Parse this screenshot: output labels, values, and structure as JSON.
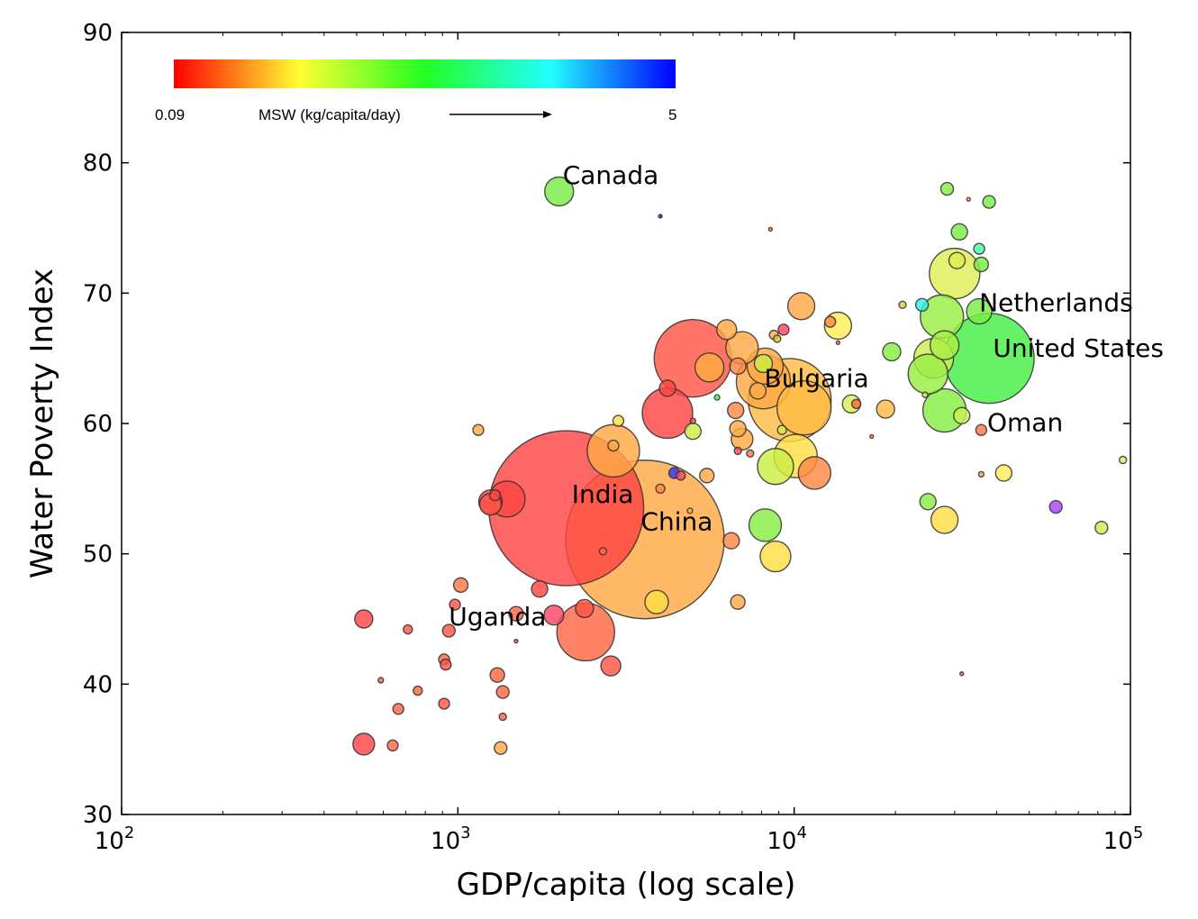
{
  "chart_data": {
    "type": "scatter",
    "subtype": "bubble",
    "xlabel": "GDP/capita (log scale)",
    "ylabel": "Water Poverty Index",
    "x_scale": "log",
    "xlim": [
      100,
      100000
    ],
    "ylim": [
      30,
      90
    ],
    "x_ticks": [
      {
        "value": 100,
        "base": "10",
        "exp": "2"
      },
      {
        "value": 1000,
        "base": "10",
        "exp": "3"
      },
      {
        "value": 10000,
        "base": "10",
        "exp": "4"
      },
      {
        "value": 100000,
        "base": "10",
        "exp": "5"
      }
    ],
    "y_ticks": [
      30,
      40,
      50,
      60,
      70,
      80,
      90
    ],
    "grid": false,
    "colorbar": {
      "label": "MSW (kg/capita/day)",
      "min_label": "0.09",
      "max_label": "5",
      "min": 0.09,
      "max": 5,
      "colors": [
        "#ff0000",
        "#ffff33",
        "#22ff22",
        "#22ffff",
        "#0000ff"
      ],
      "placement": "top-left"
    },
    "annotations": [
      {
        "text": "Canada",
        "x": 2050,
        "y": 78.4
      },
      {
        "text": "Netherlands",
        "x": 35500,
        "y": 68.6
      },
      {
        "text": "United States",
        "x": 39000,
        "y": 65.1
      },
      {
        "text": "Bulgaria",
        "x": 8150,
        "y": 62.8
      },
      {
        "text": "Oman",
        "x": 37500,
        "y": 59.4
      },
      {
        "text": "India",
        "x": 2180,
        "y": 53.9
      },
      {
        "text": "China",
        "x": 3500,
        "y": 51.8
      },
      {
        "text": "Uganda",
        "x": 940,
        "y": 44.5
      }
    ],
    "points": [
      {
        "x": 2000,
        "y": 77.8,
        "size": 16,
        "color": "#77ee44"
      },
      {
        "x": 4000,
        "y": 75.9,
        "size": 2,
        "color": "#2222cc"
      },
      {
        "x": 8500,
        "y": 74.9,
        "size": 2,
        "color": "#ff8844"
      },
      {
        "x": 28500,
        "y": 78.0,
        "size": 7,
        "color": "#88ee44"
      },
      {
        "x": 33000,
        "y": 77.2,
        "size": 2,
        "color": "#ffaa44"
      },
      {
        "x": 38000,
        "y": 77.0,
        "size": 7,
        "color": "#77ee44"
      },
      {
        "x": 31000,
        "y": 74.7,
        "size": 9,
        "color": "#77ee44"
      },
      {
        "x": 35500,
        "y": 73.4,
        "size": 6,
        "color": "#44ffaa"
      },
      {
        "x": 30000,
        "y": 71.5,
        "size": 28,
        "color": "#ddee55"
      },
      {
        "x": 36000,
        "y": 72.2,
        "size": 8,
        "color": "#77ee44"
      },
      {
        "x": 30500,
        "y": 72.5,
        "size": 9,
        "color": "#ddee55"
      },
      {
        "x": 21000,
        "y": 69.1,
        "size": 4,
        "color": "#ddcc33"
      },
      {
        "x": 24000,
        "y": 69.1,
        "size": 7,
        "color": "#33eeee"
      },
      {
        "x": 27500,
        "y": 68.2,
        "size": 24,
        "color": "#99ee44"
      },
      {
        "x": 35500,
        "y": 68.6,
        "size": 14,
        "color": "#77ee44"
      },
      {
        "x": 19500,
        "y": 65.5,
        "size": 10,
        "color": "#88ee44"
      },
      {
        "x": 26000,
        "y": 65.0,
        "size": 22,
        "color": "#ccee55"
      },
      {
        "x": 28000,
        "y": 66.0,
        "size": 16,
        "color": "#aaee44"
      },
      {
        "x": 25000,
        "y": 63.8,
        "size": 22,
        "color": "#99ee44"
      },
      {
        "x": 24500,
        "y": 62.2,
        "size": 3,
        "color": "#ccee55"
      },
      {
        "x": 28000,
        "y": 61.0,
        "size": 24,
        "color": "#88ee44"
      },
      {
        "x": 31500,
        "y": 60.6,
        "size": 9,
        "color": "#ccee55"
      },
      {
        "x": 38000,
        "y": 65.0,
        "size": 50,
        "color": "#44ee44"
      },
      {
        "x": 36000,
        "y": 59.5,
        "size": 6,
        "color": "#ff7744"
      },
      {
        "x": 17000,
        "y": 59.0,
        "size": 2,
        "color": "#ff8844"
      },
      {
        "x": 36000,
        "y": 56.1,
        "size": 3,
        "color": "#ffaa44"
      },
      {
        "x": 42000,
        "y": 56.2,
        "size": 9,
        "color": "#ffee55"
      },
      {
        "x": 95000,
        "y": 57.2,
        "size": 4,
        "color": "#ddee55"
      },
      {
        "x": 25000,
        "y": 54.0,
        "size": 9,
        "color": "#88ee44"
      },
      {
        "x": 28000,
        "y": 52.6,
        "size": 15,
        "color": "#ffdd44"
      },
      {
        "x": 60000,
        "y": 53.6,
        "size": 7,
        "color": "#aa44ff"
      },
      {
        "x": 82000,
        "y": 52.0,
        "size": 7,
        "color": "#ccee55"
      },
      {
        "x": 31500,
        "y": 40.8,
        "size": 2,
        "color": "#ff7744"
      },
      {
        "x": 10500,
        "y": 69.0,
        "size": 15,
        "color": "#ffaa44"
      },
      {
        "x": 12800,
        "y": 67.8,
        "size": 6,
        "color": "#ff8844"
      },
      {
        "x": 13500,
        "y": 67.5,
        "size": 15,
        "color": "#ffee55"
      },
      {
        "x": 9300,
        "y": 67.2,
        "size": 6,
        "color": "#ff4466"
      },
      {
        "x": 8700,
        "y": 66.8,
        "size": 5,
        "color": "#ffaa44"
      },
      {
        "x": 8900,
        "y": 66.5,
        "size": 4,
        "color": "#ddcc33"
      },
      {
        "x": 13500,
        "y": 66.2,
        "size": 2,
        "color": "#ff8844"
      },
      {
        "x": 6300,
        "y": 67.2,
        "size": 11,
        "color": "#ffaa44"
      },
      {
        "x": 7000,
        "y": 65.8,
        "size": 18,
        "color": "#ffaa44"
      },
      {
        "x": 5000,
        "y": 65.0,
        "size": 43,
        "color": "#ff5544"
      },
      {
        "x": 5600,
        "y": 64.3,
        "size": 16,
        "color": "#ffaa44"
      },
      {
        "x": 6800,
        "y": 64.4,
        "size": 9,
        "color": "#ff8844"
      },
      {
        "x": 8200,
        "y": 64.4,
        "size": 20,
        "color": "#ffaa44"
      },
      {
        "x": 8100,
        "y": 64.6,
        "size": 10,
        "color": "#ccee44"
      },
      {
        "x": 8100,
        "y": 63.2,
        "size": 30,
        "color": "#ffaa44"
      },
      {
        "x": 9700,
        "y": 61.8,
        "size": 46,
        "color": "#ffbb44"
      },
      {
        "x": 10700,
        "y": 61.2,
        "size": 30,
        "color": "#ffbb44"
      },
      {
        "x": 7800,
        "y": 62.5,
        "size": 9,
        "color": "#ffaa44"
      },
      {
        "x": 5900,
        "y": 62.0,
        "size": 3,
        "color": "#55ee44"
      },
      {
        "x": 14800,
        "y": 61.5,
        "size": 10,
        "color": "#ddee55"
      },
      {
        "x": 15300,
        "y": 61.5,
        "size": 5,
        "color": "#ff6644"
      },
      {
        "x": 18700,
        "y": 61.1,
        "size": 10,
        "color": "#ffbb44"
      },
      {
        "x": 6700,
        "y": 61.0,
        "size": 9,
        "color": "#ff8844"
      },
      {
        "x": 6800,
        "y": 59.6,
        "size": 9,
        "color": "#ffaa44"
      },
      {
        "x": 7000,
        "y": 58.8,
        "size": 12,
        "color": "#ffaa44"
      },
      {
        "x": 6800,
        "y": 57.9,
        "size": 4,
        "color": "#ff4466"
      },
      {
        "x": 7400,
        "y": 57.7,
        "size": 4,
        "color": "#ff7744"
      },
      {
        "x": 9200,
        "y": 59.5,
        "size": 5,
        "color": "#ccee44"
      },
      {
        "x": 10100,
        "y": 57.5,
        "size": 24,
        "color": "#ffdd44"
      },
      {
        "x": 8800,
        "y": 56.7,
        "size": 20,
        "color": "#ccee44"
      },
      {
        "x": 11500,
        "y": 56.2,
        "size": 18,
        "color": "#ff8844"
      },
      {
        "x": 8200,
        "y": 52.2,
        "size": 18,
        "color": "#88ee44"
      },
      {
        "x": 8800,
        "y": 49.8,
        "size": 17,
        "color": "#ffdd44"
      },
      {
        "x": 6500,
        "y": 51.0,
        "size": 9,
        "color": "#ff8844"
      },
      {
        "x": 6800,
        "y": 46.3,
        "size": 8,
        "color": "#ffaa44"
      },
      {
        "x": 4200,
        "y": 62.7,
        "size": 9,
        "color": "#ff4444"
      },
      {
        "x": 4200,
        "y": 60.8,
        "size": 28,
        "color": "#ff4444"
      },
      {
        "x": 3000,
        "y": 60.2,
        "size": 6,
        "color": "#ffdd44"
      },
      {
        "x": 2900,
        "y": 57.9,
        "size": 29,
        "color": "#ffaa44"
      },
      {
        "x": 2900,
        "y": 58.3,
        "size": 6,
        "color": "#ffaa44"
      },
      {
        "x": 5000,
        "y": 59.4,
        "size": 9,
        "color": "#ccee44"
      },
      {
        "x": 5000,
        "y": 60.2,
        "size": 3,
        "color": "#ff4466"
      },
      {
        "x": 1150,
        "y": 59.5,
        "size": 6,
        "color": "#ffaa44"
      },
      {
        "x": 4400,
        "y": 56.2,
        "size": 6,
        "color": "#3333ff"
      },
      {
        "x": 4600,
        "y": 56.0,
        "size": 5,
        "color": "#ff4466"
      },
      {
        "x": 5500,
        "y": 56.0,
        "size": 8,
        "color": "#ffaa44"
      },
      {
        "x": 4000,
        "y": 55.0,
        "size": 5,
        "color": "#ff8844"
      },
      {
        "x": 4900,
        "y": 53.3,
        "size": 3,
        "color": "#ffaa44"
      },
      {
        "x": 1400,
        "y": 54.2,
        "size": 20,
        "color": "#ff4444"
      },
      {
        "x": 1250,
        "y": 54.0,
        "size": 13,
        "color": "#ff4444"
      },
      {
        "x": 1250,
        "y": 53.8,
        "size": 12,
        "color": "#ff5544"
      },
      {
        "x": 1290,
        "y": 54.5,
        "size": 6,
        "color": "#ff4444"
      },
      {
        "x": 2100,
        "y": 53.5,
        "size": 86,
        "color": "#ff4444"
      },
      {
        "x": 3600,
        "y": 51.1,
        "size": 88,
        "color": "#ffaa44"
      },
      {
        "x": 2700,
        "y": 50.2,
        "size": 4,
        "color": "#ff6644"
      },
      {
        "x": 3900,
        "y": 46.3,
        "size": 13,
        "color": "#ffdd44"
      },
      {
        "x": 1020,
        "y": 47.6,
        "size": 8,
        "color": "#ff7744"
      },
      {
        "x": 1750,
        "y": 47.3,
        "size": 9,
        "color": "#ff4444"
      },
      {
        "x": 980,
        "y": 46.1,
        "size": 6,
        "color": "#ff5544"
      },
      {
        "x": 1490,
        "y": 45.4,
        "size": 8,
        "color": "#ff6644"
      },
      {
        "x": 1930,
        "y": 45.3,
        "size": 11,
        "color": "#ff4466"
      },
      {
        "x": 2380,
        "y": 45.8,
        "size": 10,
        "color": "#ff5544"
      },
      {
        "x": 2400,
        "y": 44.0,
        "size": 32,
        "color": "#ff6644"
      },
      {
        "x": 525,
        "y": 45.0,
        "size": 10,
        "color": "#ff4444"
      },
      {
        "x": 710,
        "y": 44.2,
        "size": 5,
        "color": "#ff5544"
      },
      {
        "x": 940,
        "y": 44.1,
        "size": 7,
        "color": "#ff5544"
      },
      {
        "x": 1490,
        "y": 43.3,
        "size": 2,
        "color": "#ff5544"
      },
      {
        "x": 910,
        "y": 41.9,
        "size": 6,
        "color": "#ff6644"
      },
      {
        "x": 920,
        "y": 41.5,
        "size": 6,
        "color": "#ff5544"
      },
      {
        "x": 2850,
        "y": 41.4,
        "size": 11,
        "color": "#ff5544"
      },
      {
        "x": 1310,
        "y": 40.7,
        "size": 8,
        "color": "#ff6644"
      },
      {
        "x": 590,
        "y": 40.3,
        "size": 3,
        "color": "#ff6644"
      },
      {
        "x": 1360,
        "y": 39.4,
        "size": 7,
        "color": "#ff6644"
      },
      {
        "x": 760,
        "y": 39.5,
        "size": 5,
        "color": "#ff6644"
      },
      {
        "x": 910,
        "y": 38.5,
        "size": 6,
        "color": "#ff5544"
      },
      {
        "x": 665,
        "y": 38.1,
        "size": 6,
        "color": "#ff6644"
      },
      {
        "x": 1360,
        "y": 37.5,
        "size": 4,
        "color": "#ff6644"
      },
      {
        "x": 525,
        "y": 35.4,
        "size": 12,
        "color": "#ff4444"
      },
      {
        "x": 640,
        "y": 35.3,
        "size": 6,
        "color": "#ff6644"
      },
      {
        "x": 1340,
        "y": 35.1,
        "size": 7,
        "color": "#ffaa44"
      }
    ]
  }
}
